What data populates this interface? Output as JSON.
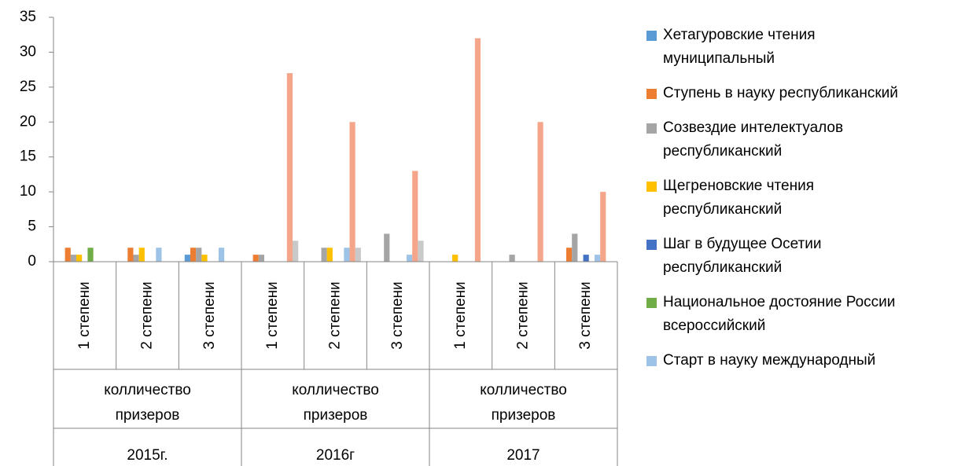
{
  "chart_data": {
    "type": "bar",
    "categories": [
      "1 степени",
      "2 степени",
      "3 степени",
      "1 степени",
      "2 степени",
      "3 степени",
      "1 степени",
      "2 степени",
      "3 степени"
    ],
    "category_groups": [
      "колличество призеров",
      "колличество призеров",
      "колличество призеров"
    ],
    "years": [
      "2015г.",
      "2016г",
      "2017"
    ],
    "series": [
      {
        "name": "Хетагуровские чтения муниципальный",
        "color": "#5b9bd5",
        "values": [
          0,
          0,
          1,
          0,
          0,
          0,
          0,
          0,
          0
        ]
      },
      {
        "name": "Ступень в науку республиканский",
        "color": "#ed7d31",
        "values": [
          2,
          2,
          2,
          1,
          0,
          0,
          0,
          0,
          2
        ]
      },
      {
        "name": "Созвездие интелектуалов республиканский",
        "color": "#a5a5a5",
        "values": [
          1,
          1,
          2,
          1,
          2,
          4,
          0,
          1,
          4
        ]
      },
      {
        "name": "Щегреновские чтения республиканский",
        "color": "#ffc000",
        "values": [
          1,
          2,
          1,
          0,
          2,
          0,
          1,
          0,
          0
        ]
      },
      {
        "name": "Шаг в будущее Осетии республиканский",
        "color": "#4472c4",
        "values": [
          0,
          0,
          0,
          0,
          0,
          0,
          0,
          0,
          1
        ]
      },
      {
        "name": "Национальное достояние России всероссийский",
        "color": "#70ad47",
        "values": [
          2,
          0,
          0,
          0,
          0,
          0,
          0,
          0,
          0
        ]
      },
      {
        "name": "Старт в науку международный",
        "color": "#9dc3e6",
        "values": [
          0,
          2,
          2,
          0,
          2,
          1,
          0,
          0,
          1
        ]
      },
      {
        "color": "#f4a58a",
        "values": [
          0,
          0,
          0,
          27,
          20,
          13,
          32,
          20,
          10
        ]
      },
      {
        "color": "#c9c9c9",
        "values": [
          0,
          0,
          0,
          3,
          2,
          3,
          0,
          0,
          0
        ]
      }
    ],
    "ylim": [
      0,
      35
    ],
    "yticks": [
      0,
      5,
      10,
      15,
      20,
      25,
      30,
      35
    ],
    "grid": false
  }
}
